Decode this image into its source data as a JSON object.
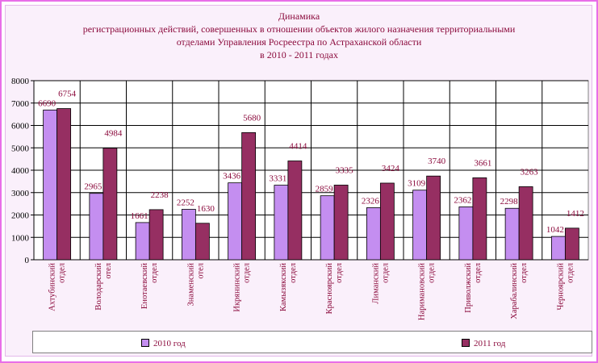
{
  "colors": {
    "series_2010": "#c48ef0",
    "series_2011": "#962f62",
    "text": "#8b0a3c",
    "frame": "#e86ee8"
  },
  "chart_data": {
    "type": "bar",
    "title": "Динамика",
    "subtitle": [
      "регистрационных действий, совершенных в отношении объектов жилого назначения территориальными",
      "отделами Управления Росреестра по Астраханской области",
      "в 2010 - 2011 годах"
    ],
    "categories": [
      [
        "Ахтубинский",
        "отдел"
      ],
      [
        "Володарский",
        "отел"
      ],
      [
        "Енотаевский",
        "отдел"
      ],
      [
        "Знаменский",
        "отел"
      ],
      [
        "Икрянинский",
        "отдел"
      ],
      [
        "Камызякский",
        "отдел"
      ],
      [
        "Красноярский",
        "отдел"
      ],
      [
        "Лиманский",
        "отдел"
      ],
      [
        "Наримановский",
        "отдел"
      ],
      [
        "Приволжский",
        "отдел"
      ],
      [
        "Харабалинский",
        "отдел"
      ],
      [
        "Черноярский",
        "отдел"
      ]
    ],
    "series": [
      {
        "name": "2010 год",
        "values": [
          6690,
          2965,
          1661,
          2252,
          3436,
          3331,
          2859,
          2326,
          3109,
          2362,
          2298,
          1042
        ]
      },
      {
        "name": "2011 год",
        "values": [
          6754,
          4984,
          2238,
          1630,
          5680,
          4414,
          3335,
          3424,
          3740,
          3661,
          3263,
          1412
        ]
      }
    ],
    "ylim": [
      0,
      8000
    ],
    "yticks": [
      "0",
      "1000",
      "2000",
      "3000",
      "4000",
      "5000",
      "6000",
      "7000",
      "8000"
    ],
    "grid": true,
    "legend_position": "bottom"
  }
}
